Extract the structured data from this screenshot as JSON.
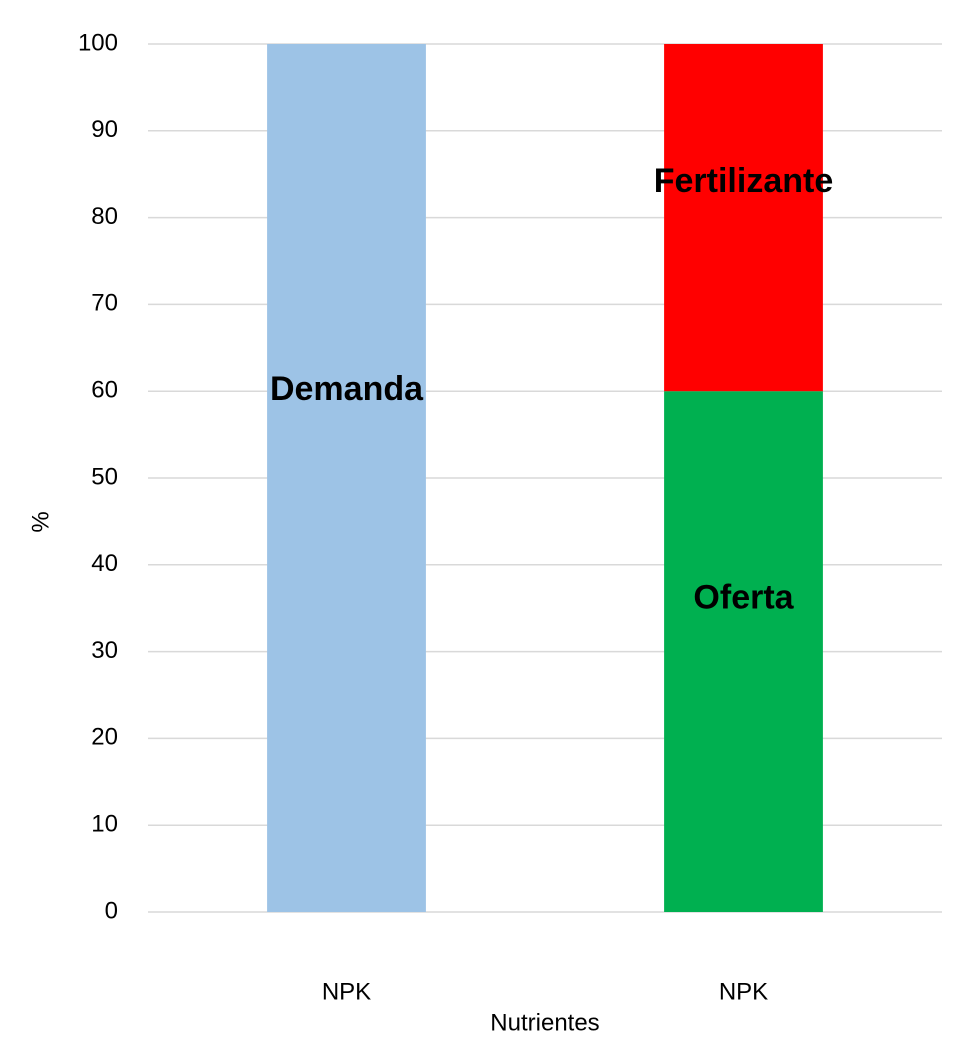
{
  "chart_data": {
    "type": "stacked_bar",
    "x_label": "Nutrientes",
    "y_label": "%",
    "categories": [
      "NPK",
      "NPK"
    ],
    "series": [
      {
        "name": "Demanda",
        "color": "#9dc3e6",
        "values": [
          100,
          null
        ]
      },
      {
        "name": "Oferta",
        "color": "#00b050",
        "values": [
          null,
          60
        ]
      },
      {
        "name": "Fertilizante",
        "color": "#ff0000",
        "values": [
          null,
          40
        ]
      }
    ],
    "ylim": [
      0,
      100
    ],
    "yticks": [
      0,
      10,
      20,
      30,
      40,
      50,
      60,
      70,
      80,
      90,
      100
    ],
    "grid": true
  }
}
